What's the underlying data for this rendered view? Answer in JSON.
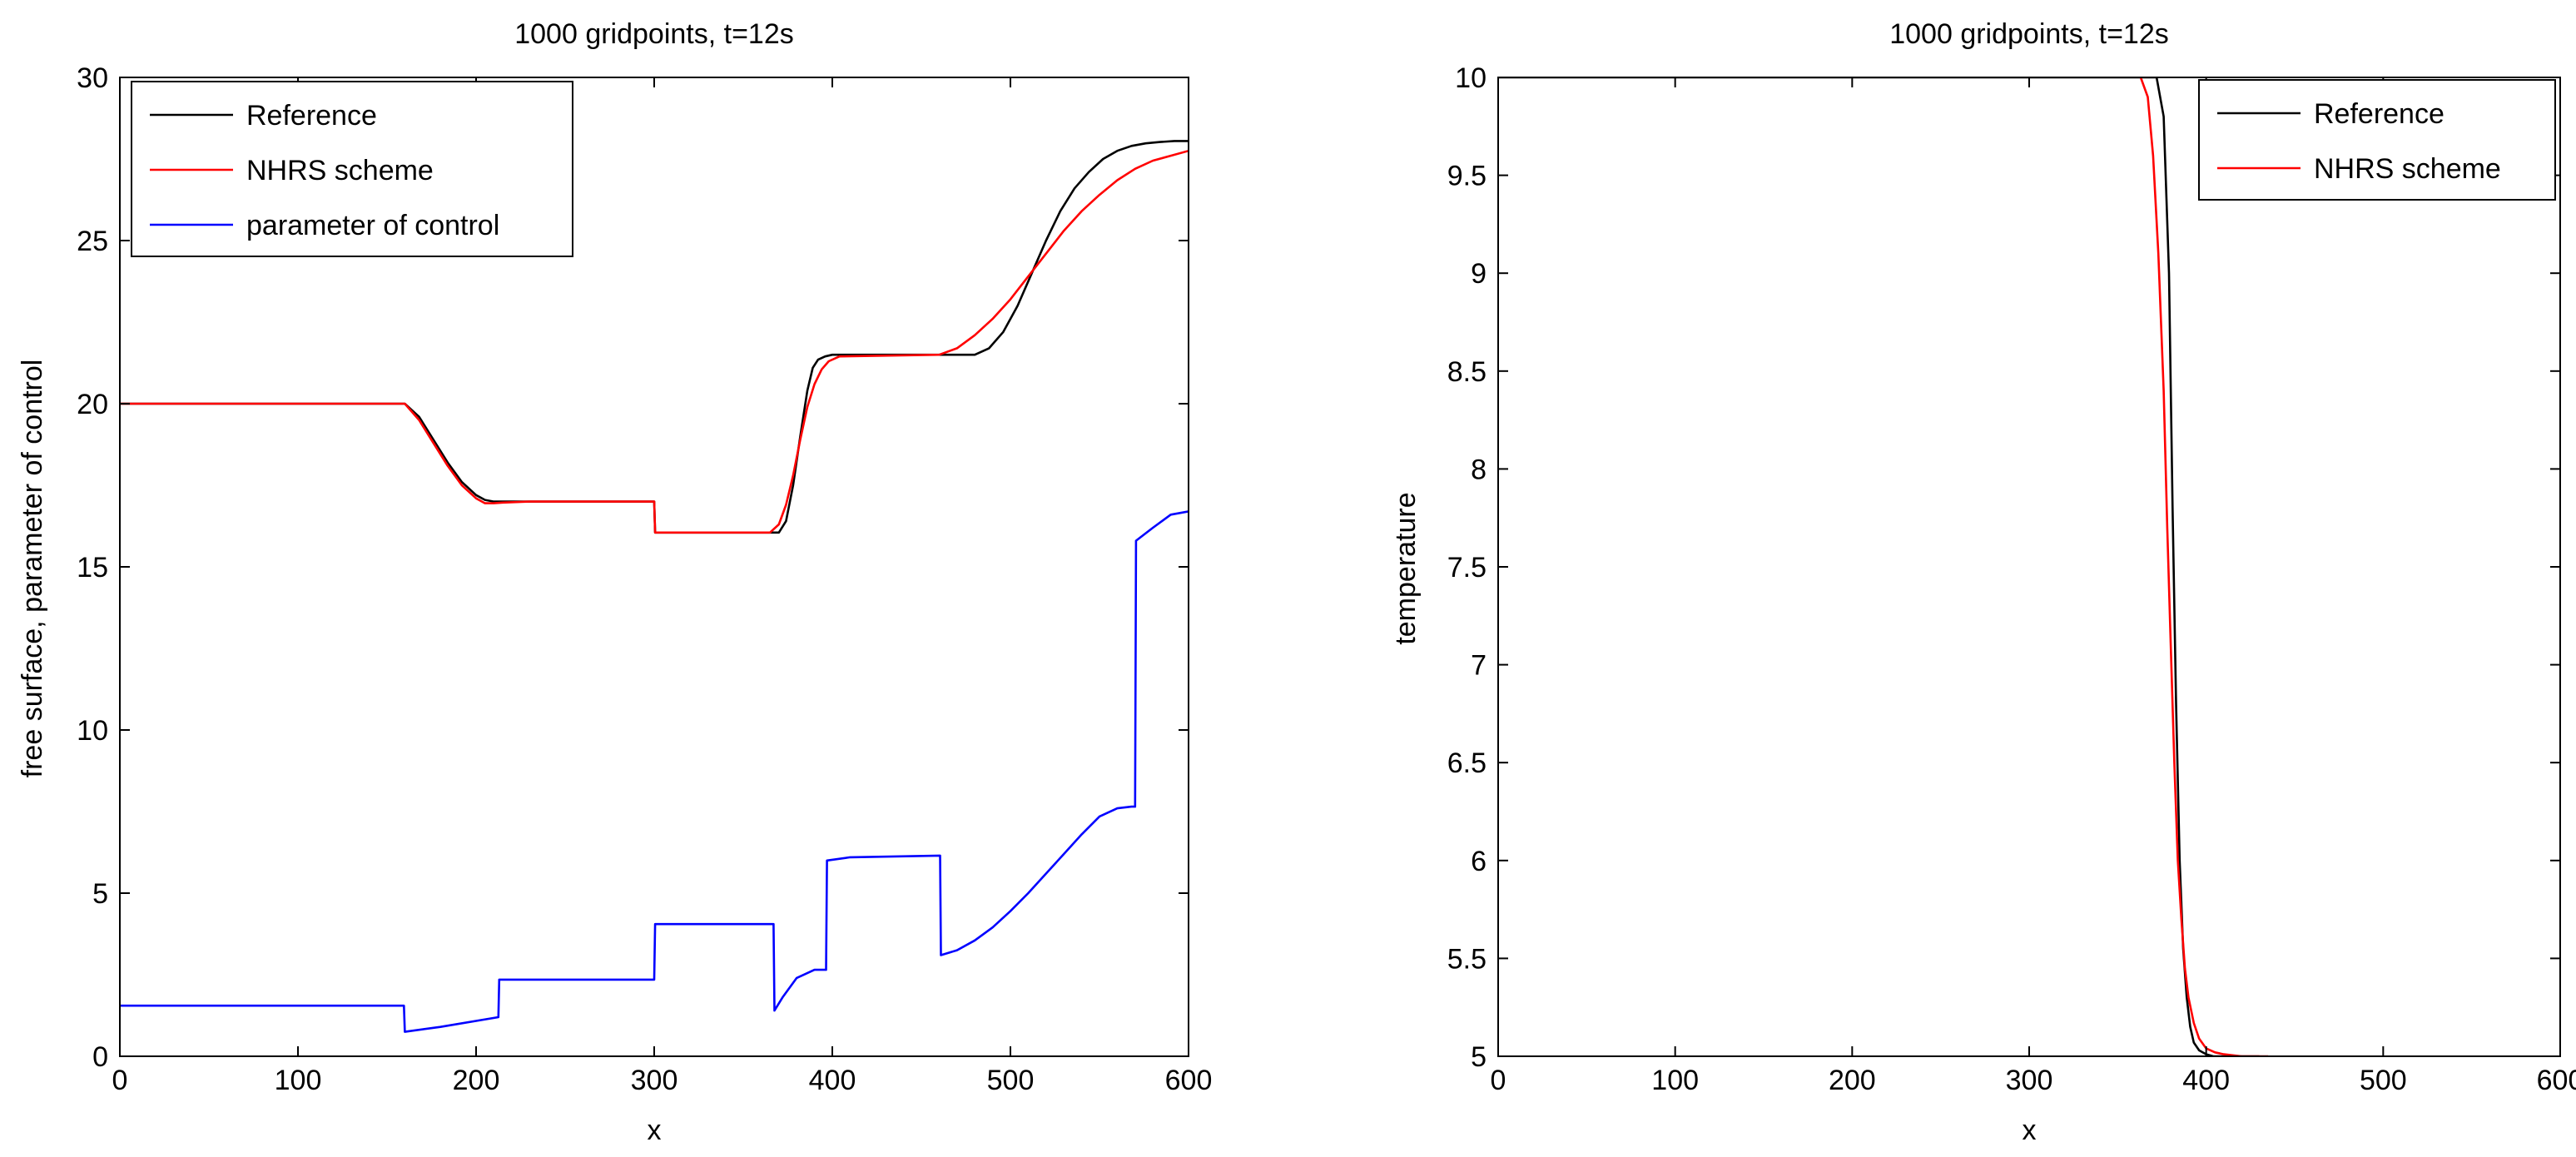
{
  "chart_data": [
    {
      "type": "line",
      "title": "1000 gridpoints, t=12s",
      "xlabel": "x",
      "ylabel": "free surface, parameter of control",
      "xlim": [
        0,
        600
      ],
      "ylim": [
        0,
        30
      ],
      "xticks": [
        "0",
        "100",
        "200",
        "300",
        "400",
        "500",
        "600"
      ],
      "yticks": [
        "0",
        "5",
        "10",
        "15",
        "20",
        "25",
        "30"
      ],
      "grid": false,
      "legend_position": "top-left",
      "series": [
        {
          "name": "Reference",
          "color": "#000000",
          "x": [
            0,
            160,
            168,
            176,
            184,
            192,
            200,
            205,
            210,
            215,
            230,
            300,
            300.5,
            370,
            374,
            378,
            382,
            386,
            389,
            392,
            396,
            400,
            480,
            488,
            496,
            504,
            512,
            520,
            528,
            536,
            544,
            552,
            560,
            568,
            576,
            584,
            592,
            600
          ],
          "y": [
            20,
            20,
            19.6,
            18.9,
            18.2,
            17.6,
            17.2,
            17.05,
            17.0,
            17.0,
            17.0,
            17.0,
            16.05,
            16.05,
            16.4,
            17.5,
            19.0,
            20.4,
            21.1,
            21.35,
            21.45,
            21.5,
            21.5,
            21.7,
            22.2,
            23.0,
            24.0,
            25.0,
            25.9,
            26.6,
            27.1,
            27.5,
            27.75,
            27.9,
            27.98,
            28.02,
            28.05,
            28.05
          ]
        },
        {
          "name": "NHRS scheme",
          "color": "#ff0000",
          "x": [
            0,
            160,
            168,
            176,
            184,
            192,
            200,
            205,
            210,
            215,
            230,
            300,
            300.5,
            365,
            370,
            374,
            378,
            382,
            386,
            390,
            394,
            398,
            404,
            460,
            470,
            480,
            490,
            500,
            510,
            520,
            530,
            540,
            550,
            560,
            570,
            580,
            590,
            600
          ],
          "y": [
            20,
            20,
            19.5,
            18.8,
            18.1,
            17.5,
            17.1,
            16.95,
            16.95,
            16.97,
            17.0,
            17.0,
            16.05,
            16.05,
            16.3,
            16.9,
            17.8,
            18.9,
            19.9,
            20.6,
            21.05,
            21.3,
            21.45,
            21.5,
            21.7,
            22.1,
            22.6,
            23.2,
            23.9,
            24.6,
            25.3,
            25.9,
            26.4,
            26.85,
            27.2,
            27.45,
            27.6,
            27.75
          ]
        },
        {
          "name": "parameter of control",
          "color": "#0000ff",
          "x": [
            0,
            159.5,
            160,
            180,
            212.5,
            213,
            300,
            300.5,
            367,
            367.5,
            372,
            380,
            390,
            396.5,
            397,
            410,
            460.5,
            461,
            470,
            480,
            490,
            500,
            510,
            520,
            530,
            540,
            550,
            560,
            568,
            570,
            570.5,
            580,
            590,
            600
          ],
          "y": [
            1.55,
            1.55,
            0.75,
            0.9,
            1.2,
            2.35,
            2.35,
            4.05,
            4.05,
            1.4,
            1.8,
            2.4,
            2.65,
            2.65,
            6.0,
            6.1,
            6.15,
            3.1,
            3.25,
            3.55,
            3.95,
            4.45,
            5.0,
            5.6,
            6.2,
            6.8,
            7.35,
            7.6,
            7.65,
            7.65,
            15.8,
            16.2,
            16.6,
            16.7
          ]
        }
      ]
    },
    {
      "type": "line",
      "title": "1000 gridpoints, t=12s",
      "xlabel": "x",
      "ylabel": "temperature",
      "xlim": [
        0,
        600
      ],
      "ylim": [
        5,
        10
      ],
      "xticks": [
        "0",
        "100",
        "200",
        "300",
        "400",
        "500",
        "600"
      ],
      "yticks": [
        "5",
        "5.5",
        "6",
        "6.5",
        "7",
        "7.5",
        "8",
        "8.5",
        "9",
        "9.5",
        "10"
      ],
      "grid": false,
      "legend_position": "top-right",
      "series": [
        {
          "name": "Reference",
          "color": "#000000",
          "x": [
            0,
            368,
            372,
            376,
            379,
            381,
            383,
            385,
            387,
            389,
            391,
            393,
            396,
            400,
            404,
            410,
            430
          ],
          "y": [
            10,
            10,
            10,
            9.8,
            9.0,
            7.8,
            6.8,
            6.0,
            5.55,
            5.3,
            5.15,
            5.07,
            5.03,
            5.01,
            5.0,
            5.0,
            5.0
          ]
        },
        {
          "name": "NHRS scheme",
          "color": "#ff0000",
          "x": [
            363,
            367,
            370,
            373,
            376,
            378,
            380,
            382,
            384,
            386,
            388,
            390,
            393,
            396,
            400,
            405,
            410,
            420,
            435
          ],
          "y": [
            10,
            9.9,
            9.6,
            9.1,
            8.4,
            7.7,
            7.1,
            6.5,
            6.0,
            5.7,
            5.45,
            5.3,
            5.17,
            5.09,
            5.04,
            5.02,
            5.01,
            5.0,
            5.0
          ]
        }
      ]
    }
  ]
}
